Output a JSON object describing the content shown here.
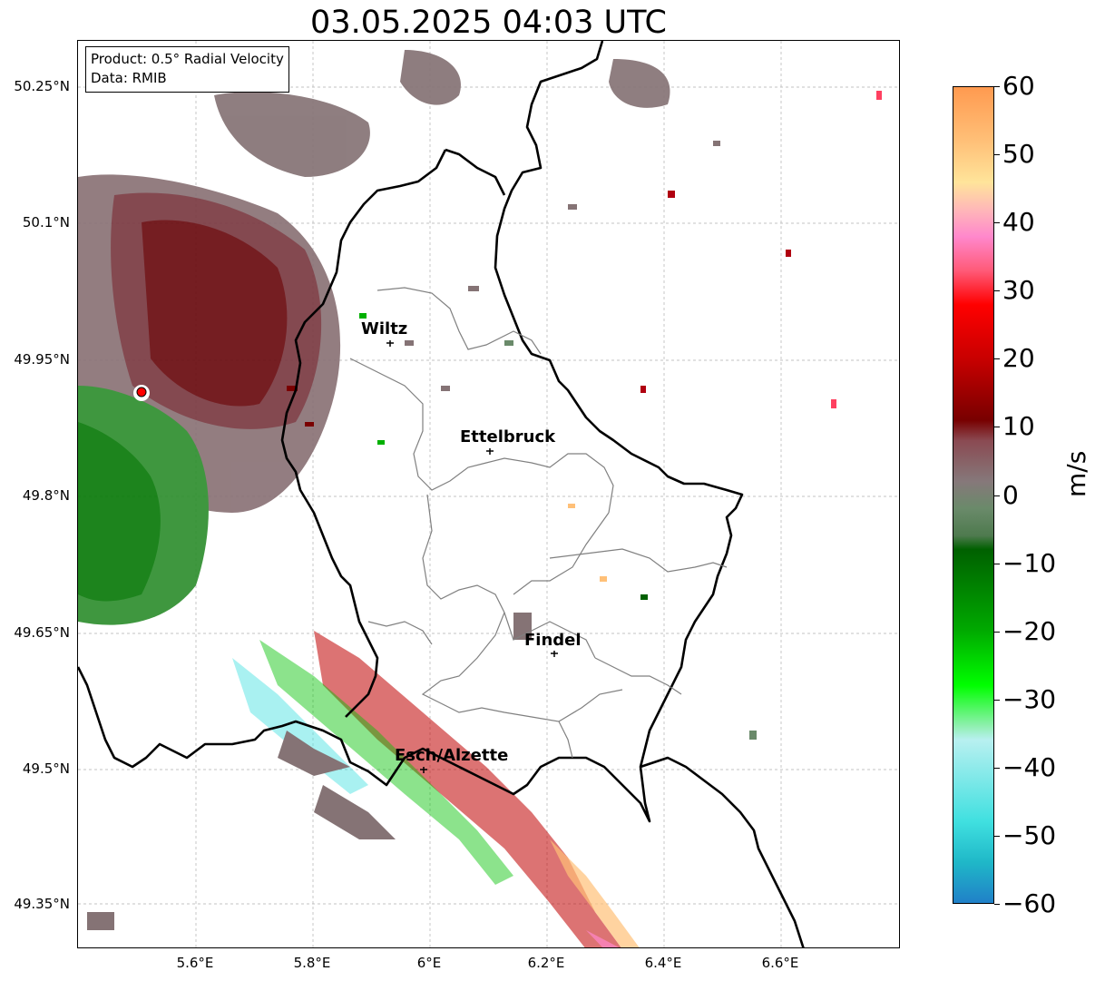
{
  "title": "03.05.2025 04:03 UTC",
  "info_box": {
    "product": "Product: 0.5° Radial Velocity",
    "data": "Data: RMIB"
  },
  "lat_ticks": [
    "50.25°N",
    "50.1°N",
    "49.95°N",
    "49.8°N",
    "49.65°N",
    "49.5°N",
    "49.35°N"
  ],
  "lon_ticks": [
    "5.6°E",
    "5.8°E",
    "6°E",
    "6.2°E",
    "6.4°E",
    "6.6°E"
  ],
  "cities": [
    {
      "name": "Wiltz"
    },
    {
      "name": "Ettelbruck"
    },
    {
      "name": "Findel"
    },
    {
      "name": "Esch/Alzette"
    }
  ],
  "colorbar": {
    "label": "m/s",
    "ticks": [
      "60",
      "50",
      "40",
      "30",
      "20",
      "10",
      "0",
      "−10",
      "−20",
      "−30",
      "−40",
      "−50",
      "−60"
    ],
    "range": [
      -60,
      60
    ],
    "stops": [
      {
        "v": 60,
        "color": "#ff9a50"
      },
      {
        "v": 52,
        "color": "#ffc078"
      },
      {
        "v": 46,
        "color": "#ffe49a"
      },
      {
        "v": 42,
        "color": "#ffb8b8"
      },
      {
        "v": 38,
        "color": "#ff88cc"
      },
      {
        "v": 33,
        "color": "#ff5a78"
      },
      {
        "v": 28,
        "color": "#ff0000"
      },
      {
        "v": 20,
        "color": "#c80000"
      },
      {
        "v": 11,
        "color": "#780000"
      },
      {
        "v": 8,
        "color": "#8a4a52"
      },
      {
        "v": 2,
        "color": "#86787a"
      },
      {
        "v": -2,
        "color": "#6a8a6a"
      },
      {
        "v": -6,
        "color": "#4e7a4e"
      },
      {
        "v": -8,
        "color": "#006000"
      },
      {
        "v": -20,
        "color": "#00aa00"
      },
      {
        "v": -28,
        "color": "#00ff00"
      },
      {
        "v": -34,
        "color": "#90f0b0"
      },
      {
        "v": -36,
        "color": "#b8f0f0"
      },
      {
        "v": -48,
        "color": "#40e0e0"
      },
      {
        "v": -54,
        "color": "#1fb8c8"
      },
      {
        "v": -60,
        "color": "#2080c8"
      }
    ]
  },
  "radar_site_color": "#ff0000"
}
